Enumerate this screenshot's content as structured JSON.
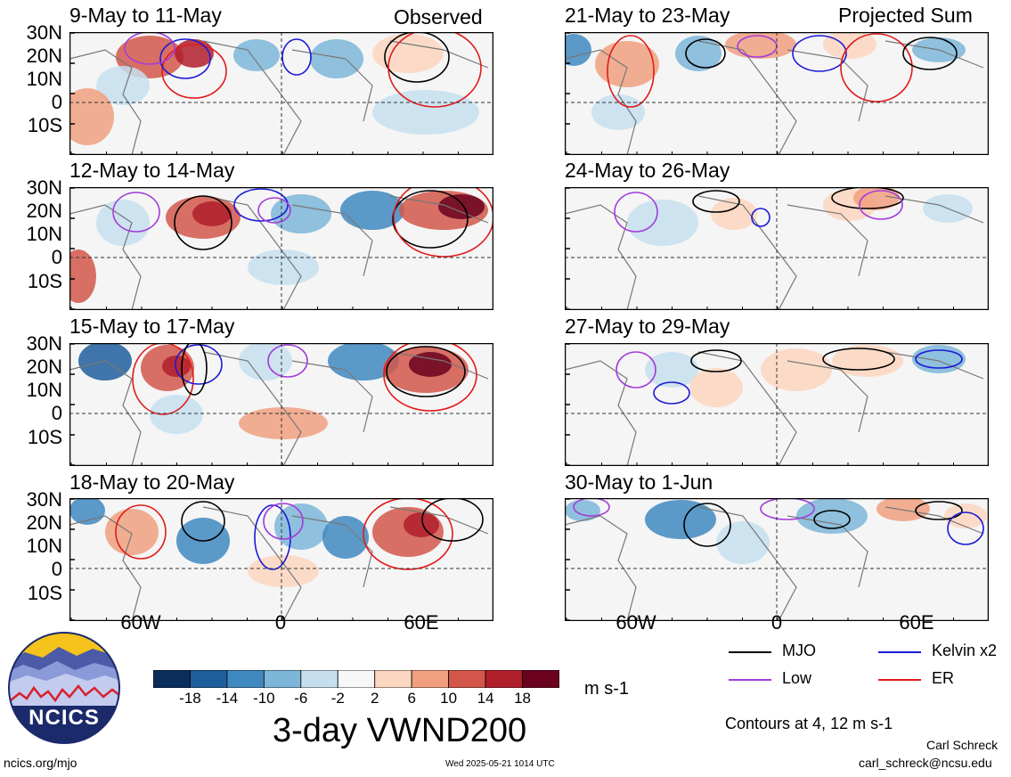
{
  "header": {
    "observed_label": "Observed",
    "projected_label": "Projected Sum"
  },
  "panels": {
    "left": [
      {
        "title": "9-May to 11-May"
      },
      {
        "title": "12-May to 14-May"
      },
      {
        "title": "15-May to 17-May"
      },
      {
        "title": "18-May to 20-May"
      }
    ],
    "right": [
      {
        "title": "21-May to 23-May"
      },
      {
        "title": "24-May to 26-May"
      },
      {
        "title": "27-May to 29-May"
      },
      {
        "title": "30-May to 1-Jun"
      }
    ]
  },
  "axes": {
    "lat_labels": [
      "30N",
      "20N",
      "10N",
      "0",
      "10S"
    ],
    "lon_labels": [
      "60W",
      "0",
      "60E"
    ]
  },
  "colorbar": {
    "ticks": [
      "-18",
      "-14",
      "-10",
      "-6",
      "-2",
      "2",
      "6",
      "10",
      "14",
      "18"
    ],
    "colors": [
      "#0b2d5c",
      "#1f5e9c",
      "#3f88c0",
      "#7db6d8",
      "#c6dfee",
      "#f7f7f7",
      "#fbd6c0",
      "#f0a07f",
      "#d2574a",
      "#b01f2c",
      "#6a0220"
    ],
    "unit": "m s-1",
    "title": "3-day VWND200"
  },
  "legend": {
    "items": [
      {
        "label": "MJO",
        "color": "#000000"
      },
      {
        "label": "Kelvin x2",
        "color": "#1a1ad6"
      },
      {
        "label": "Low",
        "color": "#a33cdc"
      },
      {
        "label": "ER",
        "color": "#e11a1a"
      }
    ],
    "contours_note": "Contours at 4, 12 m s-1"
  },
  "footer": {
    "logo_text": "NCICS",
    "site": "ncics.org/mjo",
    "timestamp": "Wed 2025-05-21 1014 UTC",
    "author": "Carl Schreck",
    "email": "carl_schreck@ncsu.edu"
  }
}
